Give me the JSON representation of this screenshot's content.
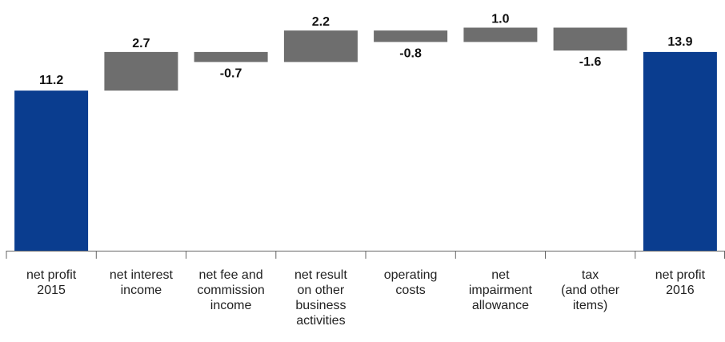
{
  "chart_data": {
    "type": "bar",
    "subtype": "waterfall",
    "categories": [
      "net profit 2015",
      "net interest income",
      "net fee and commission income",
      "net result on other business activities",
      "operating costs",
      "net impairment allowance",
      "tax (and other items)",
      "net profit 2016"
    ],
    "category_lines": [
      [
        "net profit",
        "2015"
      ],
      [
        "net interest",
        "income"
      ],
      [
        "net fee and",
        "commission",
        "income"
      ],
      [
        "net result",
        "on other",
        "business",
        "activities"
      ],
      [
        "operating",
        "costs"
      ],
      [
        "net",
        "impairment",
        "allowance"
      ],
      [
        "tax",
        "(and other",
        "items)"
      ],
      [
        "net profit",
        "2016"
      ]
    ],
    "values": [
      11.2,
      2.7,
      -0.7,
      2.2,
      -0.8,
      1.0,
      -1.6,
      13.9
    ],
    "value_labels": [
      "11.2",
      "2.7",
      "-0.7",
      "2.2",
      "-0.8",
      "1.0",
      "-1.6",
      "13.9"
    ],
    "kinds": [
      "total",
      "delta",
      "delta",
      "delta",
      "delta",
      "delta",
      "delta",
      "total"
    ],
    "ylim": [
      0,
      17
    ],
    "grid": false,
    "title": "",
    "xlabel": "",
    "ylabel": "",
    "colors": {
      "total": "#0a3d8f",
      "delta": "#6e6e6e",
      "axis": "#666666",
      "text": "#111111"
    }
  }
}
